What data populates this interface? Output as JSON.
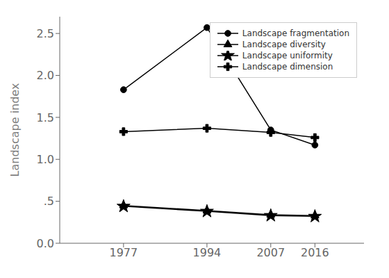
{
  "chart_data": {
    "type": "line",
    "ylabel": "Landscape index",
    "x": [
      1977,
      1994,
      2007,
      2016
    ],
    "xlim": [
      1964,
      2026
    ],
    "xticks": [
      1977,
      1994,
      2007,
      2016
    ],
    "ylim": [
      0.0,
      2.7
    ],
    "yticks": [
      {
        "value": 0.0,
        "label": "0.0"
      },
      {
        "value": 0.5,
        "label": ".5"
      },
      {
        "value": 1.0,
        "label": "1.0"
      },
      1.5,
      {
        "value": 2.0,
        "label": "2.0"
      },
      2.5
    ],
    "series": [
      {
        "name": "Landscape fragmentation",
        "color": "#000000",
        "marker": "circle",
        "values": [
          1.83,
          2.57,
          1.35,
          1.17
        ]
      },
      {
        "name": "Landscape diversity",
        "color": "#000000",
        "marker": "triangle",
        "values": [
          0.45,
          0.39,
          0.34,
          0.33
        ]
      },
      {
        "name": "Landscape uniformity",
        "color": "#000000",
        "marker": "star",
        "values": [
          0.44,
          0.38,
          0.33,
          0.32
        ]
      },
      {
        "name": "Landscape dimension",
        "color": "#000000",
        "marker": "plus",
        "values": [
          1.33,
          1.37,
          1.32,
          1.26
        ]
      }
    ],
    "legend": "upper right",
    "grid": false
  }
}
